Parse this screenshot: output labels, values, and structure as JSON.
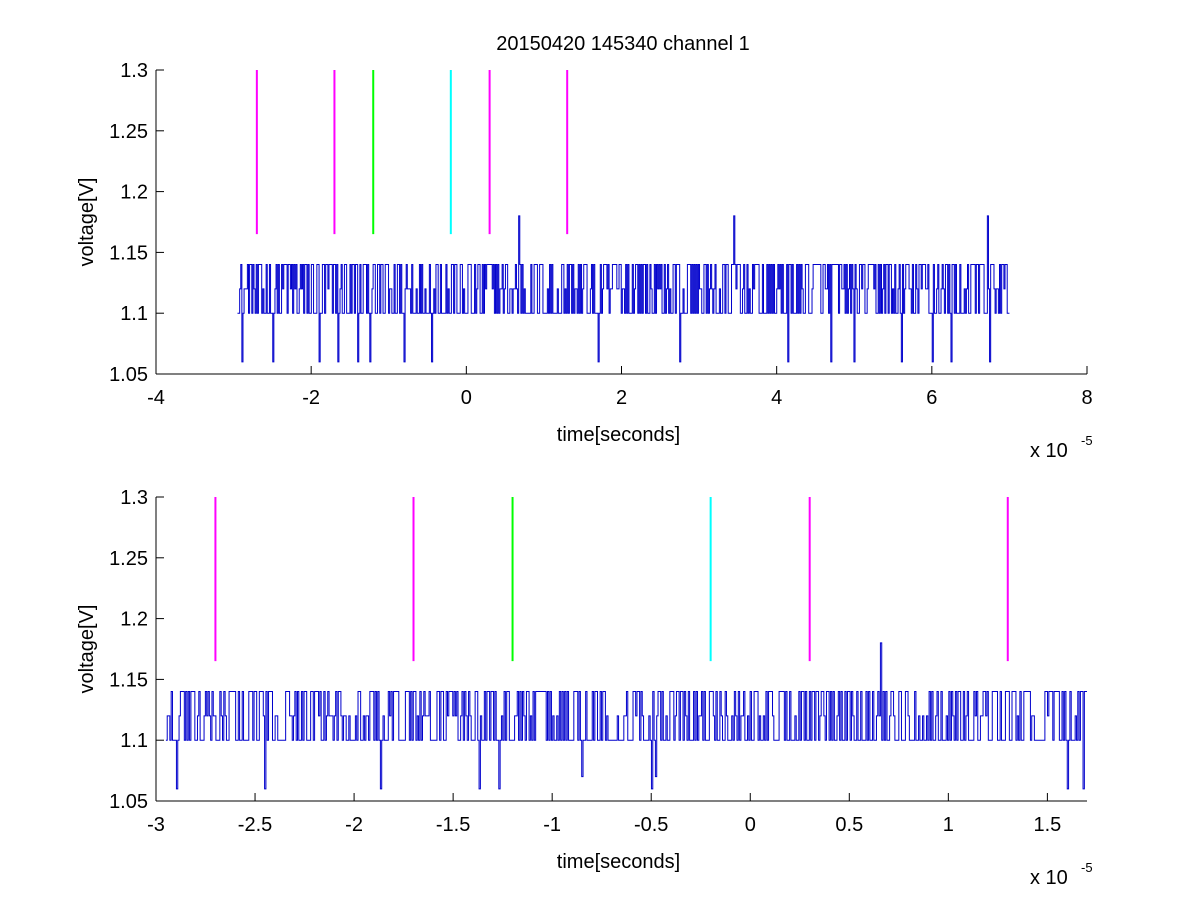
{
  "figure": {
    "title": "20150420 145340 channel 1"
  },
  "chart_data": [
    {
      "type": "line",
      "xlabel": "time[seconds]",
      "ylabel": "voltage[V]",
      "x_multiplier_label": "x 10",
      "x_multiplier_exponent": "-5",
      "xlim": [
        -4e-05,
        8e-05
      ],
      "ylim": [
        1.05,
        1.3
      ],
      "xticks": [
        -4e-05,
        -2e-05,
        0,
        2e-05,
        4e-05,
        6e-05,
        8e-05
      ],
      "xtick_labels": [
        "-4",
        "-2",
        "0",
        "2",
        "4",
        "6",
        "8"
      ],
      "yticks": [
        1.05,
        1.1,
        1.15,
        1.2,
        1.25,
        1.3
      ],
      "ytick_labels": [
        "1.05",
        "1.1",
        "1.15",
        "1.2",
        "1.25",
        "1.3"
      ],
      "grid": false,
      "series": [
        {
          "color": "#0000cc",
          "x_range": [
            -2.95e-05,
            7e-05
          ],
          "baseline_levels": [
            1.1,
            1.12,
            1.14
          ],
          "dips": [
            {
              "x": -2.9e-05,
              "y": 1.06
            },
            {
              "x": -2.5e-05,
              "y": 1.06
            },
            {
              "x": -1.9e-05,
              "y": 1.06
            },
            {
              "x": -1.65e-05,
              "y": 1.06
            },
            {
              "x": -1.4e-05,
              "y": 1.06
            },
            {
              "x": -1.25e-05,
              "y": 1.06
            },
            {
              "x": -8e-06,
              "y": 1.06
            },
            {
              "x": -4.5e-06,
              "y": 1.06
            },
            {
              "x": 1.7e-05,
              "y": 1.06
            },
            {
              "x": 2.75e-05,
              "y": 1.06
            },
            {
              "x": 4.15e-05,
              "y": 1.06
            },
            {
              "x": 4.7e-05,
              "y": 1.06
            },
            {
              "x": 5e-05,
              "y": 1.06
            },
            {
              "x": 5.6e-05,
              "y": 1.06
            },
            {
              "x": 6e-05,
              "y": 1.06
            },
            {
              "x": 6.25e-05,
              "y": 1.06
            },
            {
              "x": 6.75e-05,
              "y": 1.06
            }
          ],
          "spikes": [
            {
              "x": 6.8e-06,
              "y": 1.18
            },
            {
              "x": 3.45e-05,
              "y": 1.18
            },
            {
              "x": 6.72e-05,
              "y": 1.18
            }
          ]
        }
      ],
      "markers": [
        {
          "x": -2.7e-05,
          "color": "#ff00ff",
          "y": [
            1.165,
            1.3
          ]
        },
        {
          "x": -1.7e-05,
          "color": "#ff00ff",
          "y": [
            1.165,
            1.3
          ]
        },
        {
          "x": -1.2e-05,
          "color": "#00ff00",
          "y": [
            1.165,
            1.3
          ]
        },
        {
          "x": -2e-06,
          "color": "#00ffff",
          "y": [
            1.165,
            1.3
          ]
        },
        {
          "x": 3e-06,
          "color": "#ff00ff",
          "y": [
            1.165,
            1.3
          ]
        },
        {
          "x": 1.3e-05,
          "color": "#ff00ff",
          "y": [
            1.165,
            1.3
          ]
        }
      ]
    },
    {
      "type": "line",
      "xlabel": "time[seconds]",
      "ylabel": "voltage[V]",
      "x_multiplier_label": "x 10",
      "x_multiplier_exponent": "-5",
      "xlim": [
        -3e-05,
        1.7e-05
      ],
      "ylim": [
        1.05,
        1.3
      ],
      "xticks": [
        -3e-05,
        -2.5e-05,
        -2e-05,
        -1.5e-05,
        -1e-05,
        -5e-06,
        0,
        5e-06,
        1e-05,
        1.5e-05
      ],
      "xtick_labels": [
        "-3",
        "-2.5",
        "-2",
        "-1.5",
        "-1",
        "-0.5",
        "0",
        "0.5",
        "1",
        "1.5"
      ],
      "yticks": [
        1.05,
        1.1,
        1.15,
        1.2,
        1.25,
        1.3
      ],
      "ytick_labels": [
        "1.05",
        "1.1",
        "1.15",
        "1.2",
        "1.25",
        "1.3"
      ],
      "grid": false,
      "series": [
        {
          "color": "#0000cc",
          "x_range": [
            -2.95e-05,
            1.7e-05
          ],
          "baseline_levels": [
            1.1,
            1.12,
            1.14
          ],
          "dips": [
            {
              "x": -2.9e-05,
              "y": 1.06
            },
            {
              "x": -2.45e-05,
              "y": 1.06
            },
            {
              "x": -1.87e-05,
              "y": 1.06
            },
            {
              "x": -1.37e-05,
              "y": 1.06
            },
            {
              "x": -1.27e-05,
              "y": 1.06
            },
            {
              "x": -8.5e-06,
              "y": 1.07
            },
            {
              "x": -5e-06,
              "y": 1.06
            },
            {
              "x": -4.8e-06,
              "y": 1.07
            },
            {
              "x": 1.6e-05,
              "y": 1.06
            },
            {
              "x": 1.68e-05,
              "y": 1.06
            }
          ],
          "spikes": [
            {
              "x": 6.6e-06,
              "y": 1.18
            }
          ]
        }
      ],
      "markers": [
        {
          "x": -2.7e-05,
          "color": "#ff00ff",
          "y": [
            1.165,
            1.3
          ]
        },
        {
          "x": -1.7e-05,
          "color": "#ff00ff",
          "y": [
            1.165,
            1.3
          ]
        },
        {
          "x": -1.2e-05,
          "color": "#00ff00",
          "y": [
            1.165,
            1.3
          ]
        },
        {
          "x": -2e-06,
          "color": "#00ffff",
          "y": [
            1.165,
            1.3
          ]
        },
        {
          "x": 3e-06,
          "color": "#ff00ff",
          "y": [
            1.165,
            1.3
          ]
        },
        {
          "x": 1.3e-05,
          "color": "#ff00ff",
          "y": [
            1.165,
            1.3
          ]
        }
      ]
    }
  ]
}
